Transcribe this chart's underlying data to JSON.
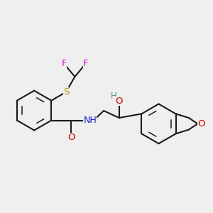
{
  "bg_color": "#efefef",
  "bond_color": "#1a1a1a",
  "colors": {
    "F": "#cc00cc",
    "S": "#b8a000",
    "N": "#1414cc",
    "O": "#cc0000",
    "H": "#5a8f8f",
    "C": "#1a1a1a"
  },
  "lw": 1.5,
  "lw_inner": 1.1
}
